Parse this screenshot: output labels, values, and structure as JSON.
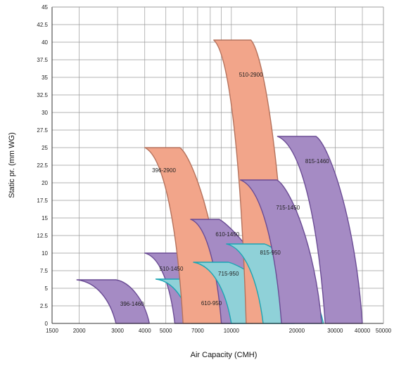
{
  "chart_data": {
    "type": "area",
    "title": "",
    "xlabel": "Air Capacity (CMH)",
    "ylabel": "Static pr.  (mm WG)",
    "x_scale": "log",
    "xlim": [
      1500,
      50000
    ],
    "ylim": [
      0,
      45
    ],
    "grid": true,
    "x_ticks": [
      1500,
      2000,
      3000,
      4000,
      5000,
      7000,
      10000,
      20000,
      30000,
      40000,
      50000
    ],
    "x_tick_labels": [
      "1500",
      "2000",
      "3000",
      "4000",
      "5000",
      "7000",
      "10000",
      "20000",
      "30000",
      "40000",
      "50000"
    ],
    "y_ticks": [
      0,
      2.5,
      5,
      7.5,
      10,
      12.5,
      15,
      17.5,
      20,
      22.5,
      25,
      27.5,
      30,
      32.5,
      35,
      37.5,
      40,
      42.5,
      45
    ],
    "y_tick_labels": [
      "0",
      "2.5",
      "5",
      "7.5",
      "10",
      "12.5",
      "15",
      "17.5",
      "20",
      "22.5",
      "25",
      "27.5",
      "30",
      "32.5",
      "35",
      "37.5",
      "40",
      "42.5",
      "45"
    ],
    "colors": {
      "2900_fill": "#f2a58a",
      "2900_stroke": "#b5725c",
      "1450_fill": "#a58bc4",
      "1450_stroke": "#6a4b94",
      "950_fill": "#8fd1d8",
      "950_stroke": "#1aa5b4"
    },
    "series": [
      {
        "name": "396-1460",
        "color": "1450",
        "top": [
          [
            1950,
            6.2
          ],
          [
            2950,
            6.2
          ]
        ],
        "right_bottom": 4200,
        "left_bottom": 2950,
        "label_at": [
          3500,
          2.8
        ]
      },
      {
        "name": "510-1450",
        "color": "1450",
        "top": [
          [
            4000,
            10.0
          ],
          [
            5900,
            10.0
          ]
        ],
        "right_bottom": 10500,
        "left_bottom": 5500,
        "label_at": [
          5300,
          7.8
        ]
      },
      {
        "name": "610-950",
        "color": "950",
        "top": [
          [
            4500,
            6.3
          ],
          [
            6500,
            6.3
          ]
        ],
        "right_bottom": 12500,
        "left_bottom": 6500,
        "label_at": [
          8100,
          2.9
        ]
      },
      {
        "name": "396-2900",
        "color": "2900",
        "top": [
          [
            4000,
            25.0
          ],
          [
            5800,
            25.0
          ]
        ],
        "right_bottom": 9300,
        "left_bottom": 6000,
        "label_at": [
          4900,
          21.8
        ]
      },
      {
        "name": "610-1450",
        "color": "1450",
        "top": [
          [
            6500,
            14.8
          ],
          [
            8800,
            14.8
          ]
        ],
        "right_bottom": 17000,
        "left_bottom": 9000,
        "label_at": [
          9600,
          12.7
        ]
      },
      {
        "name": "715-950",
        "color": "950",
        "top": [
          [
            6700,
            8.7
          ],
          [
            9700,
            8.7
          ]
        ],
        "right_bottom": 19500,
        "left_bottom": 10000,
        "label_at": [
          9700,
          7.1
        ]
      },
      {
        "name": "510-2900",
        "color": "2900",
        "top": [
          [
            8300,
            40.3
          ],
          [
            12300,
            40.3
          ]
        ],
        "right_bottom": 18000,
        "left_bottom": 11700,
        "label_at": [
          12300,
          35.4
        ]
      },
      {
        "name": "815-950",
        "color": "950",
        "top": [
          [
            9500,
            11.3
          ],
          [
            14200,
            11.3
          ]
        ],
        "right_bottom": 26500,
        "left_bottom": 14000,
        "label_at": [
          15100,
          10.1
        ]
      },
      {
        "name": "715-1450",
        "color": "1450",
        "top": [
          [
            11000,
            20.4
          ],
          [
            16200,
            20.4
          ]
        ],
        "right_bottom": 26000,
        "left_bottom": 17000,
        "label_at": [
          18200,
          16.5
        ]
      },
      {
        "name": "815-1460",
        "color": "1450",
        "top": [
          [
            16300,
            26.6
          ],
          [
            24500,
            26.6
          ]
        ],
        "right_bottom": 40000,
        "left_bottom": 27000,
        "label_at": [
          24800,
          23.1
        ]
      }
    ]
  }
}
